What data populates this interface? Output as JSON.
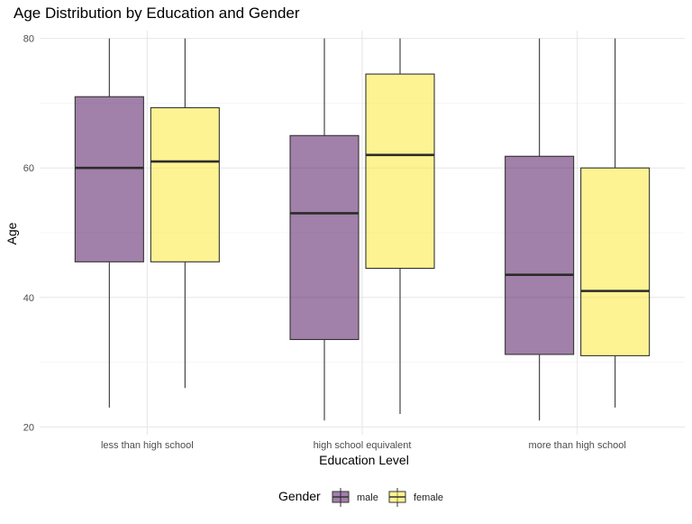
{
  "chart_data": {
    "type": "boxplot",
    "title": "Age Distribution by Education and Gender",
    "xlabel": "Education Level",
    "ylabel": "Age",
    "ylim": [
      18.8,
      81.2
    ],
    "yticks": [
      20,
      40,
      60,
      80
    ],
    "ytick_labels": [
      "20",
      "40",
      "60",
      "80"
    ],
    "categories": [
      "less than high school",
      "high school equivalent",
      "more than high school"
    ],
    "legend": {
      "title": "Gender",
      "position": "bottom"
    },
    "grid": true,
    "series": [
      {
        "name": "male",
        "color": "#440154",
        "boxes": [
          {
            "min": 23,
            "q1": 45.5,
            "median": 60,
            "q3": 71,
            "max": 80
          },
          {
            "min": 21,
            "q1": 33.5,
            "median": 53,
            "q3": 65,
            "max": 80
          },
          {
            "min": 21,
            "q1": 31.2,
            "median": 43.5,
            "q3": 61.8,
            "max": 80
          }
        ]
      },
      {
        "name": "female",
        "color": "#FDE725",
        "boxes": [
          {
            "min": 26,
            "q1": 45.5,
            "median": 61,
            "q3": 69.3,
            "max": 80
          },
          {
            "min": 22,
            "q1": 44.5,
            "median": 62,
            "q3": 74.5,
            "max": 80
          },
          {
            "min": 23,
            "q1": 31,
            "median": 41,
            "q3": 60,
            "max": 80
          }
        ]
      }
    ]
  }
}
